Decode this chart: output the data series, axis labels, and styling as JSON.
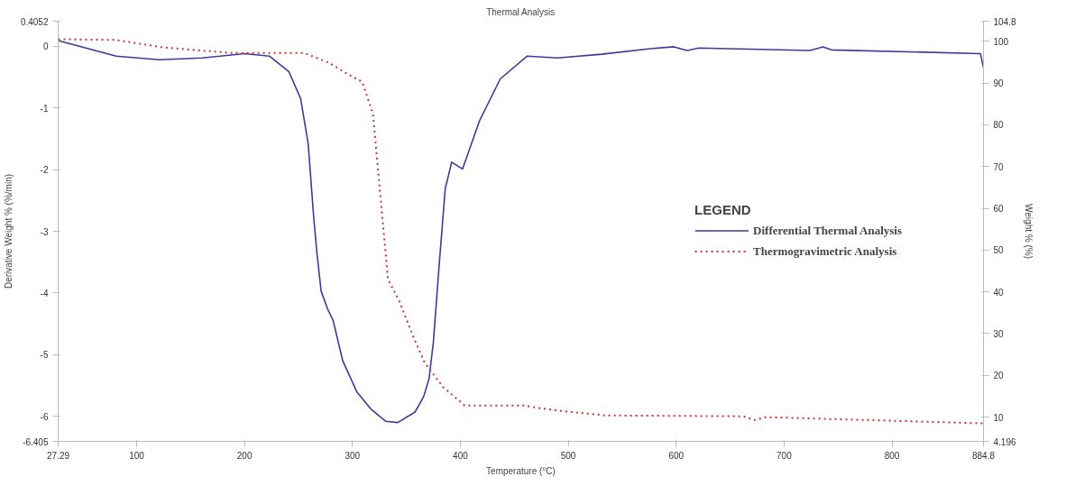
{
  "chart_data": {
    "type": "line",
    "title": "Thermal Analysis",
    "xlabel": "Temperature (°C)",
    "ylabel": "Derivative Weight % (%/min)",
    "y2label": "Weight % (%)",
    "legend_title": "LEGEND",
    "xlim": [
      27.29,
      884.8
    ],
    "xticks": [
      27.29,
      100,
      200,
      300,
      400,
      500,
      600,
      700,
      800,
      884.8
    ],
    "ylim": [
      -6.405,
      0.4052
    ],
    "yticks": [
      -6.405,
      -6,
      -5,
      -4,
      -3,
      -2,
      -1,
      0,
      0.4052
    ],
    "y2lim": [
      4.196,
      104.8
    ],
    "y2ticks": [
      4.196,
      10,
      20,
      30,
      40,
      50,
      60,
      70,
      80,
      90,
      100,
      104.8
    ],
    "grid": false,
    "legend": "right",
    "marker": "none",
    "series": [
      {
        "name": "Differential Thermal Analysis",
        "color": "#3b3b9e",
        "line_style": "solid",
        "x": [
          27.29,
          81,
          121,
          161,
          200,
          223,
          241,
          252,
          259,
          264,
          267,
          271,
          277,
          282,
          291,
          304,
          317,
          331,
          342,
          358,
          366,
          371,
          375,
          380,
          386,
          392,
          402,
          418,
          437,
          462,
          490,
          531,
          576,
          598,
          610,
          621,
          724,
          736,
          744,
          882,
          884.8
        ],
        "values": [
          0.09,
          -0.16,
          -0.22,
          -0.19,
          -0.12,
          -0.16,
          -0.41,
          -0.85,
          -1.58,
          -2.75,
          -3.34,
          -3.97,
          -4.26,
          -4.44,
          -5.1,
          -5.6,
          -5.88,
          -6.08,
          -6.1,
          -5.93,
          -5.68,
          -5.39,
          -4.8,
          -3.63,
          -2.31,
          -1.88,
          -1.99,
          -1.2,
          -0.53,
          -0.16,
          -0.19,
          -0.13,
          -0.04,
          -0.01,
          -0.07,
          -0.03,
          -0.07,
          -0.01,
          -0.06,
          -0.12,
          -0.35
        ]
      },
      {
        "name": "Thermogravimetric Analysis",
        "color": "#cc3333",
        "line_style": "dotted",
        "axis": "y2",
        "x": [
          27.29,
          81,
          125,
          188,
          255,
          277,
          300,
          309,
          319,
          328,
          333,
          343,
          356,
          367,
          384,
          404,
          438,
          459,
          472,
          500,
          535,
          662,
          673,
          683,
          884.8
        ],
        "values": [
          100.5,
          100.3,
          98.5,
          97.2,
          97.2,
          95,
          91.5,
          90.3,
          82.7,
          57,
          43,
          38,
          29.5,
          23,
          17.2,
          12.8,
          12.8,
          12.8,
          12.2,
          11.3,
          10.4,
          10.2,
          9.3,
          10,
          8.5
        ]
      }
    ]
  }
}
